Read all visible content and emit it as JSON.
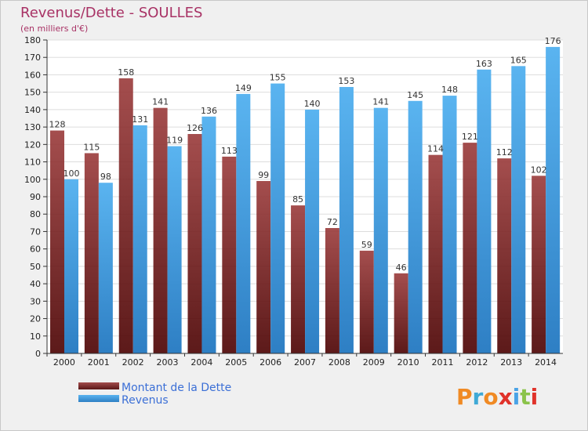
{
  "chart_data": {
    "type": "bar",
    "title": "Revenus/Dette - SOULLES",
    "subtitle": "(en milliers d'€)",
    "categories": [
      "2000",
      "2001",
      "2002",
      "2003",
      "2004",
      "2005",
      "2006",
      "2007",
      "2008",
      "2009",
      "2010",
      "2011",
      "2012",
      "2013",
      "2014"
    ],
    "series": [
      {
        "name": "Montant de la Dette",
        "color": "#7a1a1a",
        "values": [
          128,
          115,
          158,
          141,
          126,
          113,
          99,
          85,
          72,
          59,
          46,
          114,
          121,
          112,
          102
        ]
      },
      {
        "name": "Revenus",
        "color": "#4aa3e6",
        "values": [
          100,
          98,
          131,
          119,
          136,
          149,
          155,
          140,
          153,
          141,
          145,
          148,
          163,
          165,
          176
        ]
      }
    ],
    "ylim": [
      0,
      180
    ],
    "ytick_step": 10,
    "grid": true,
    "legend": "bottom-left"
  },
  "branding": {
    "logo_text": "Proxiti",
    "logo_colors": [
      "#f08a24",
      "#3fa9d6",
      "#f08a24",
      "#e0322a",
      "#4aa3e6",
      "#8bc34a",
      "#e0322a"
    ]
  }
}
